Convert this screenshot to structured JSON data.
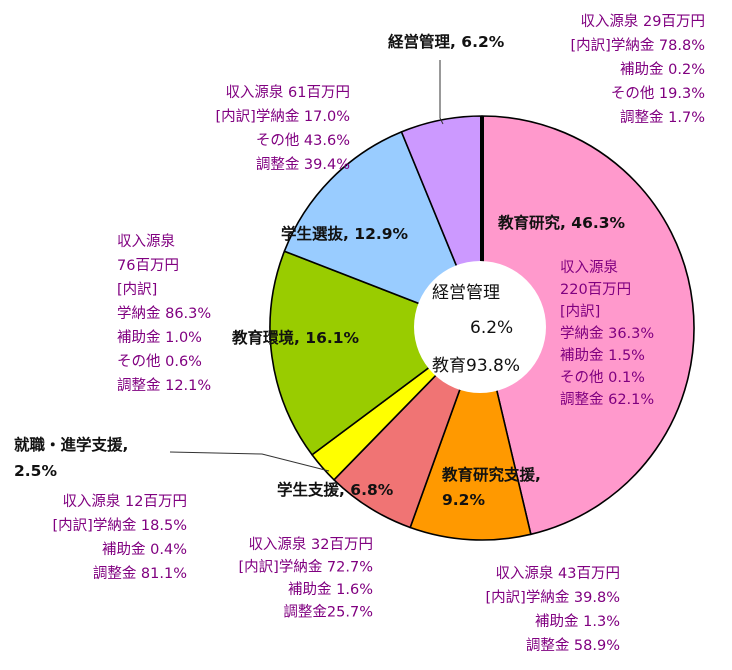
{
  "chart_data": {
    "type": "pie",
    "slices": [
      {
        "key": "kyoiku_kenkyu",
        "label": "教育研究, 46.3%",
        "value": 46.3,
        "color": "#ff99cc",
        "annotation": [
          "収入源泉",
          "220百万円",
          "[内訳]",
          "学納金 36.3%",
          "補助金 1.5%",
          "その他 0.1%",
          "調整金 62.1%"
        ]
      },
      {
        "key": "kyoiku_kenkyu_shien",
        "label": "教育研究支援, 9.2%",
        "value": 9.2,
        "color": "#ff9900",
        "annotation": [
          "収入源泉 43百万円",
          "[内訳]学納金 39.8%",
          "補助金 1.3%",
          "調整金 58.9%"
        ]
      },
      {
        "key": "gakusei_shien",
        "label": "学生支援, 6.8%",
        "value": 6.8,
        "color": "#f07474",
        "annotation": [
          "収入源泉 32百万円",
          "[内訳]学納金 72.7%",
          "補助金 1.6%",
          "調整金25.7%"
        ]
      },
      {
        "key": "shushoku_shingaku_shien",
        "label": "就職・進学支援, 2.5%",
        "label_lines": [
          "就職・進学支援,",
          "2.5%"
        ],
        "value": 2.5,
        "color": "#ffff00",
        "annotation": [
          "収入源泉 12百万円",
          "[内訳]学納金 18.5%",
          "補助金 0.4%",
          "調整金 81.1%"
        ]
      },
      {
        "key": "kyoiku_kankyo",
        "label": "教育環境, 16.1%",
        "value": 16.1,
        "color": "#99cc00",
        "annotation": [
          "収入源泉",
          "76百万円",
          "[内訳]",
          "学納金 86.3%",
          "補助金 1.0%",
          "その他 0.6%",
          "調整金 12.1%"
        ]
      },
      {
        "key": "gakusei_senbatsu",
        "label": "学生選抜, 12.9%",
        "value": 12.9,
        "color": "#99ccff",
        "annotation": [
          "収入源泉 61百万円",
          "[内訳]学納金 17.0%",
          "その他 43.6%",
          "調整金 39.4%"
        ]
      },
      {
        "key": "keiei_kanri",
        "label": "経営管理, 6.2%",
        "value": 6.2,
        "color": "#cc99ff",
        "annotation": [
          "収入源泉 29百万円",
          "[内訳]学納金 78.8%",
          "補助金 0.2%",
          "その他 19.3%",
          "調整金 1.7%"
        ]
      }
    ],
    "center": {
      "line1": "経営管理",
      "line2": "6.2%",
      "line3": "教育93.8%"
    },
    "annotation_color": "#800080",
    "label_color": "#111111",
    "outline_color": "#000000"
  }
}
